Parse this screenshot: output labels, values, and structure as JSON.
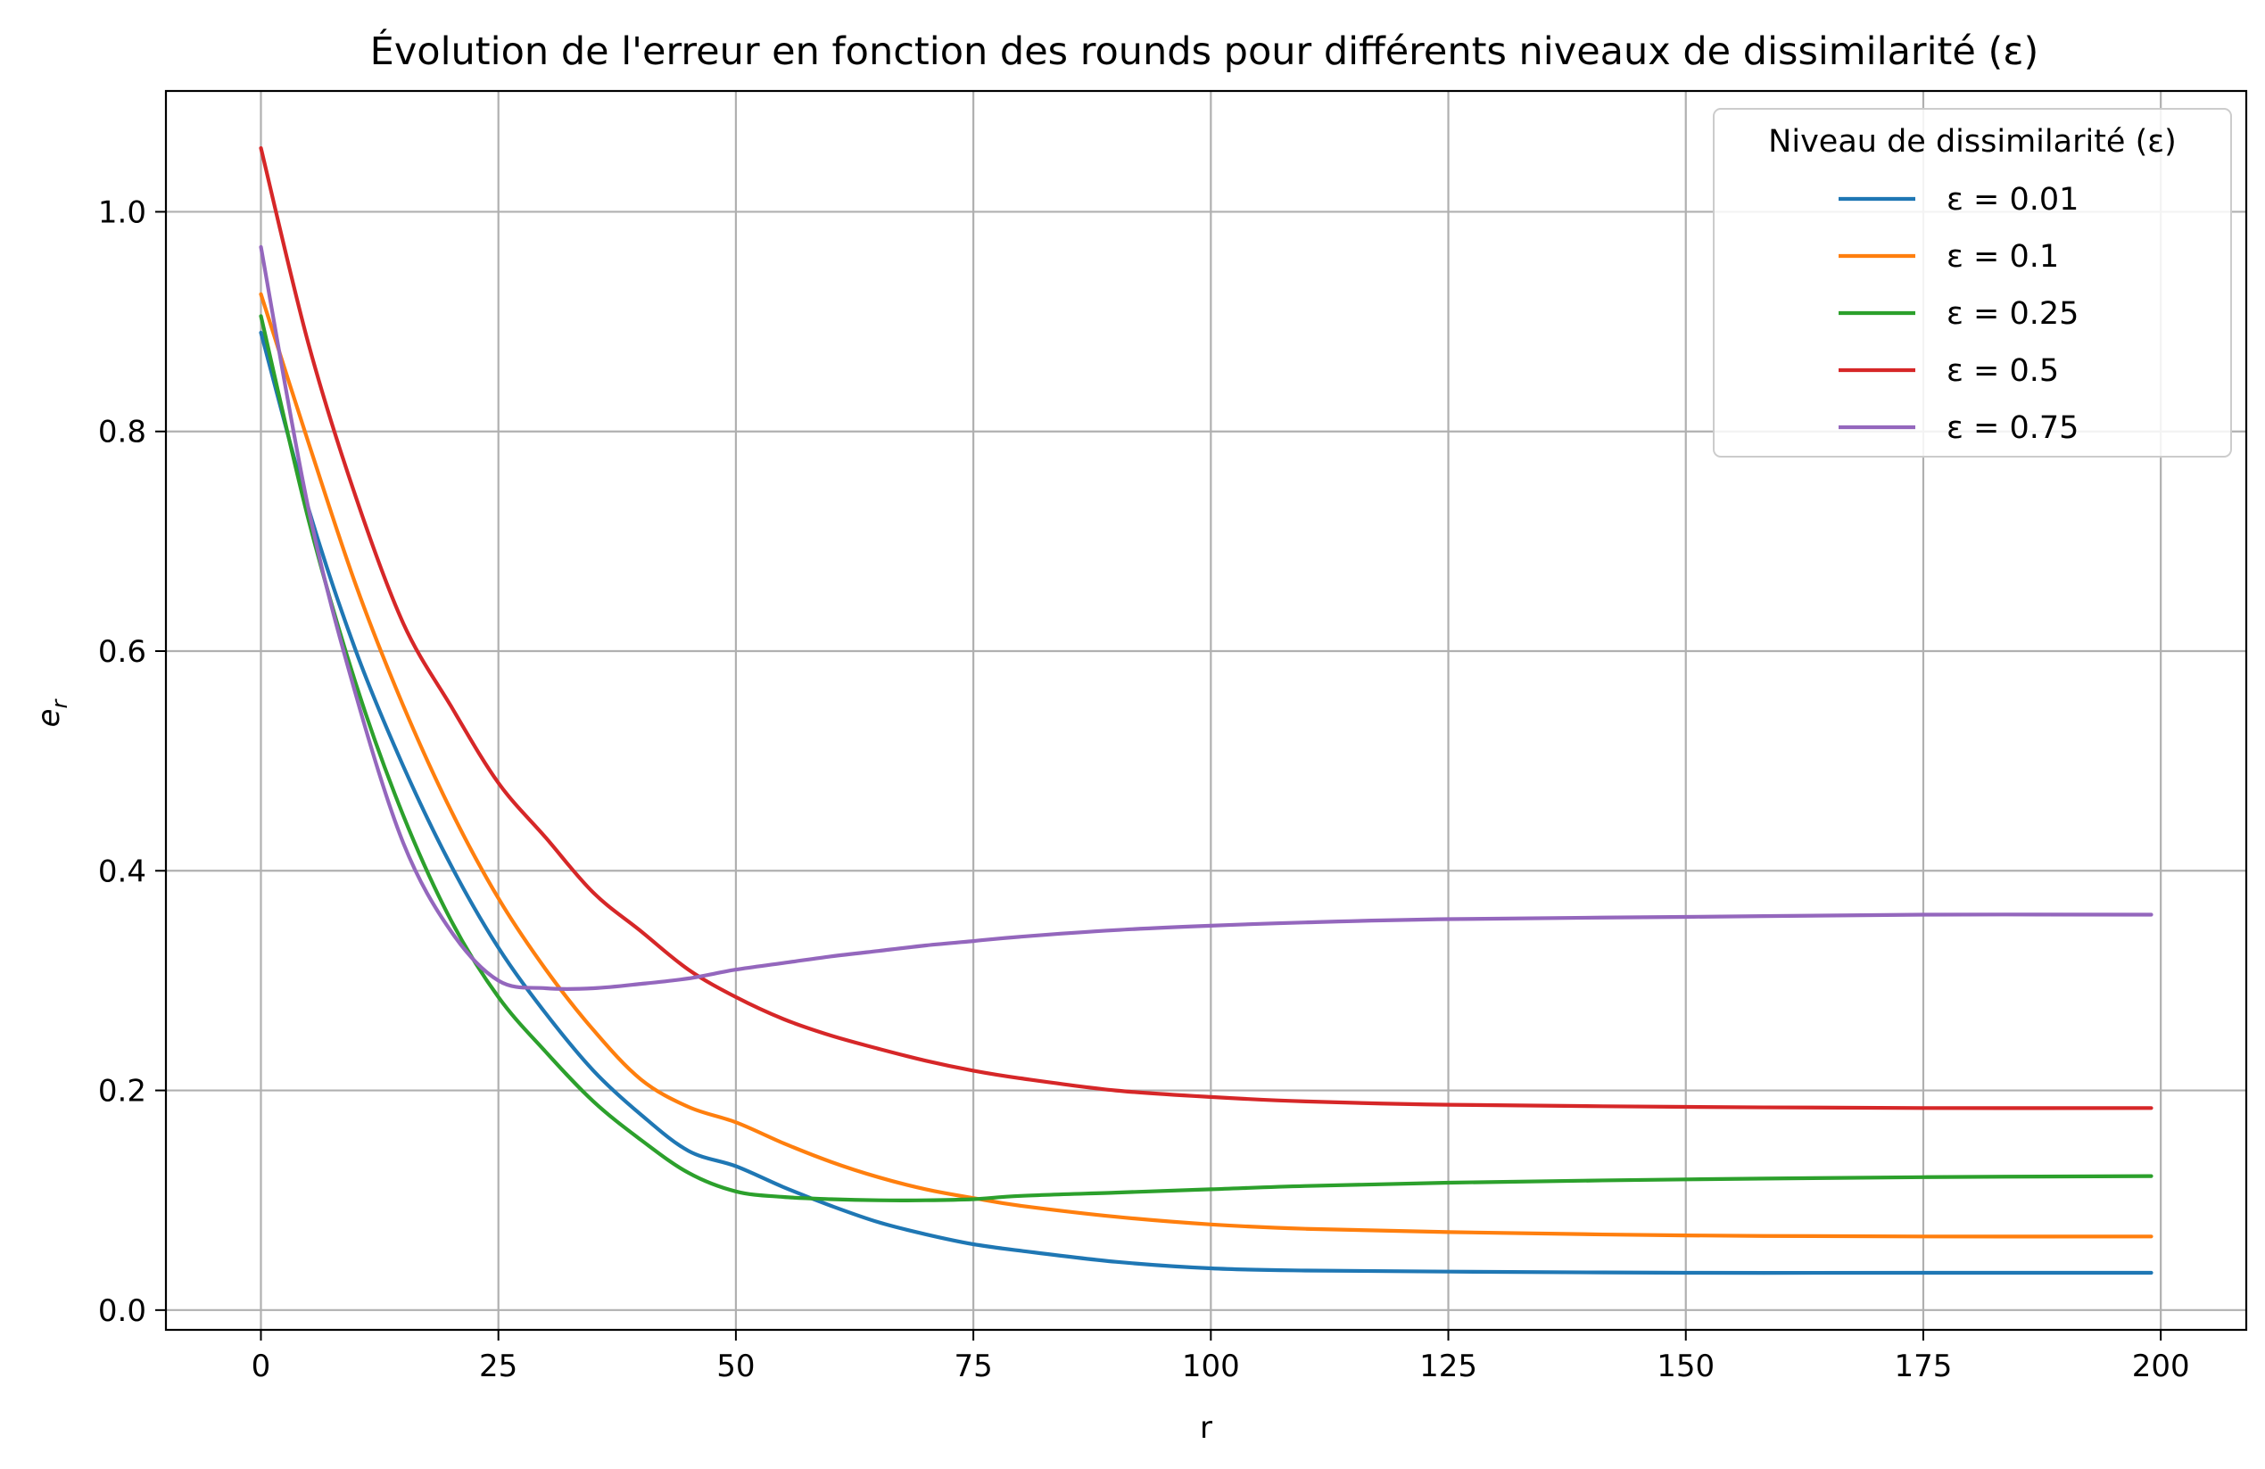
{
  "chart_data": {
    "type": "line",
    "title": "Évolution de l'erreur en fonction des rounds pour différents niveaux de dissimilarité (ε)",
    "xlabel": "r",
    "ylabel": "e",
    "ylabel_subscript": "r",
    "xlim": [
      -10,
      209
    ],
    "ylim": [
      -0.018,
      1.11
    ],
    "xticks": [
      0,
      25,
      50,
      75,
      100,
      125,
      150,
      175,
      200
    ],
    "xtick_labels": [
      "0",
      "25",
      "50",
      "75",
      "100",
      "125",
      "150",
      "175",
      "200"
    ],
    "yticks": [
      0.0,
      0.2,
      0.4,
      0.6,
      0.8,
      1.0
    ],
    "ytick_labels": [
      "0.0",
      "0.2",
      "0.4",
      "0.6",
      "0.8",
      "1.0"
    ],
    "grid": true,
    "legend": {
      "title": "Niveau de dissimilarité (ε)",
      "placement": "top-right"
    },
    "x": [
      0,
      5,
      10,
      15,
      20,
      25,
      30,
      35,
      40,
      45,
      50,
      55,
      60,
      65,
      70,
      75,
      80,
      90,
      100,
      110,
      125,
      150,
      175,
      199
    ],
    "series": [
      {
        "name": "ε = 0.01",
        "color": "#1f77b4",
        "values": [
          0.89,
          0.73,
          0.6,
          0.495,
          0.405,
          0.33,
          0.27,
          0.218,
          0.178,
          0.145,
          0.131,
          0.112,
          0.095,
          0.08,
          0.069,
          0.06,
          0.054,
          0.044,
          0.038,
          0.036,
          0.035,
          0.034,
          0.034,
          0.034
        ]
      },
      {
        "name": "ε = 0.1",
        "color": "#ff7f0e",
        "values": [
          0.925,
          0.79,
          0.66,
          0.55,
          0.455,
          0.375,
          0.31,
          0.255,
          0.21,
          0.185,
          0.171,
          0.152,
          0.135,
          0.121,
          0.11,
          0.102,
          0.095,
          0.085,
          0.078,
          0.074,
          0.071,
          0.068,
          0.067,
          0.067
        ]
      },
      {
        "name": "ε = 0.25",
        "color": "#2ca02c",
        "values": [
          0.905,
          0.72,
          0.57,
          0.45,
          0.355,
          0.285,
          0.235,
          0.19,
          0.155,
          0.125,
          0.108,
          0.103,
          0.101,
          0.1,
          0.1,
          0.101,
          0.104,
          0.107,
          0.11,
          0.113,
          0.116,
          0.119,
          0.121,
          0.122
        ]
      },
      {
        "name": "ε = 0.5",
        "color": "#d62728",
        "values": [
          1.058,
          0.88,
          0.74,
          0.625,
          0.55,
          0.48,
          0.43,
          0.38,
          0.345,
          0.31,
          0.285,
          0.265,
          0.25,
          0.238,
          0.227,
          0.218,
          0.211,
          0.2,
          0.194,
          0.19,
          0.187,
          0.185,
          0.184,
          0.184
        ]
      },
      {
        "name": "ε = 0.75",
        "color": "#9467bd",
        "values": [
          0.968,
          0.73,
          0.56,
          0.425,
          0.345,
          0.3,
          0.293,
          0.293,
          0.297,
          0.302,
          0.31,
          0.316,
          0.322,
          0.327,
          0.332,
          0.336,
          0.34,
          0.346,
          0.35,
          0.353,
          0.356,
          0.358,
          0.36,
          0.36
        ]
      }
    ]
  }
}
